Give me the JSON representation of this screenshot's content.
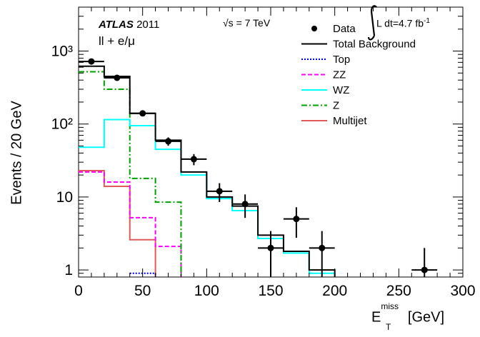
{
  "chart_data": {
    "type": "histogram",
    "experiment": "ATLAS",
    "year": "2011",
    "channel": "ll + e/μ",
    "energy": "√s = 7 TeV",
    "luminosity": "∫ L dt=4.7 fb⁻¹",
    "xlabel": "E_T^miss [GeV]",
    "ylabel": "Events / 20 GeV",
    "xlim": [
      0,
      300
    ],
    "ylim": [
      0.8,
      4000
    ],
    "yscale": "log",
    "bin_edges": [
      0,
      20,
      40,
      60,
      80,
      100,
      120,
      140,
      160,
      180,
      200,
      220,
      240,
      260,
      280,
      300
    ],
    "x_tick_labels": [
      "0",
      "50",
      "100",
      "150",
      "200",
      "250",
      "300"
    ],
    "y_tick_labels": [
      "1",
      "10",
      "10²",
      "10³"
    ],
    "data_points": [
      {
        "x": 10,
        "y": 720
      },
      {
        "x": 30,
        "y": 430
      },
      {
        "x": 50,
        "y": 140
      },
      {
        "x": 70,
        "y": 58
      },
      {
        "x": 90,
        "y": 33
      },
      {
        "x": 110,
        "y": 12
      },
      {
        "x": 130,
        "y": 8
      },
      {
        "x": 150,
        "y": 2
      },
      {
        "x": 170,
        "y": 5
      },
      {
        "x": 190,
        "y": 2
      },
      {
        "x": 270,
        "y": 1
      }
    ],
    "series": [
      {
        "name": "Total Background",
        "color": "#000000",
        "style": "solid",
        "values": [
          620,
          450,
          140,
          60,
          22,
          10,
          7.5,
          3,
          1.8,
          1,
          null,
          null,
          null,
          null,
          null
        ]
      },
      {
        "name": "Top",
        "color": "#0000cc",
        "style": "dotted",
        "values": [
          null,
          null,
          0.9,
          null,
          null,
          null,
          null,
          null,
          null,
          null,
          null,
          null,
          null,
          null,
          null
        ]
      },
      {
        "name": "ZZ",
        "color": "#ff00ff",
        "style": "dashed",
        "values": [
          22,
          16,
          5.2,
          2.1,
          null,
          null,
          null,
          null,
          null,
          null,
          null,
          null,
          null,
          null,
          null
        ]
      },
      {
        "name": "WZ",
        "color": "#00ffff",
        "style": "solid",
        "values": [
          48,
          115,
          95,
          45,
          20,
          9.5,
          6.5,
          2.7,
          1.7,
          0.9,
          null,
          null,
          null,
          null,
          null
        ]
      },
      {
        "name": "Z",
        "color": "#00a000",
        "style": "dashdot",
        "values": [
          520,
          300,
          18,
          8.5,
          null,
          null,
          null,
          null,
          null,
          null,
          null,
          null,
          null,
          null,
          null
        ]
      },
      {
        "name": "Multijet",
        "color": "#e05a5a",
        "style": "solid",
        "values": [
          23,
          14,
          2.6,
          null,
          null,
          null,
          null,
          null,
          null,
          null,
          null,
          null,
          null,
          null,
          null
        ]
      }
    ],
    "legend": {
      "position": "top-right",
      "entries": [
        "Data",
        "Total Background",
        "Top",
        "ZZ",
        "WZ",
        "Z",
        "Multijet"
      ]
    }
  },
  "labels": {
    "atlas": "ATLAS",
    "year": "2011",
    "channel": "ll + e/μ",
    "energy": "√s = 7 TeV",
    "lumi": "L dt=4.7 fb",
    "lumi_exp": "-1",
    "xlabel_main": "E",
    "xlabel_sup": "miss",
    "xlabel_sub": "T",
    "xlabel_unit": "[GeV]",
    "ylabel": "Events / 20 GeV",
    "legend_data": "Data"
  }
}
